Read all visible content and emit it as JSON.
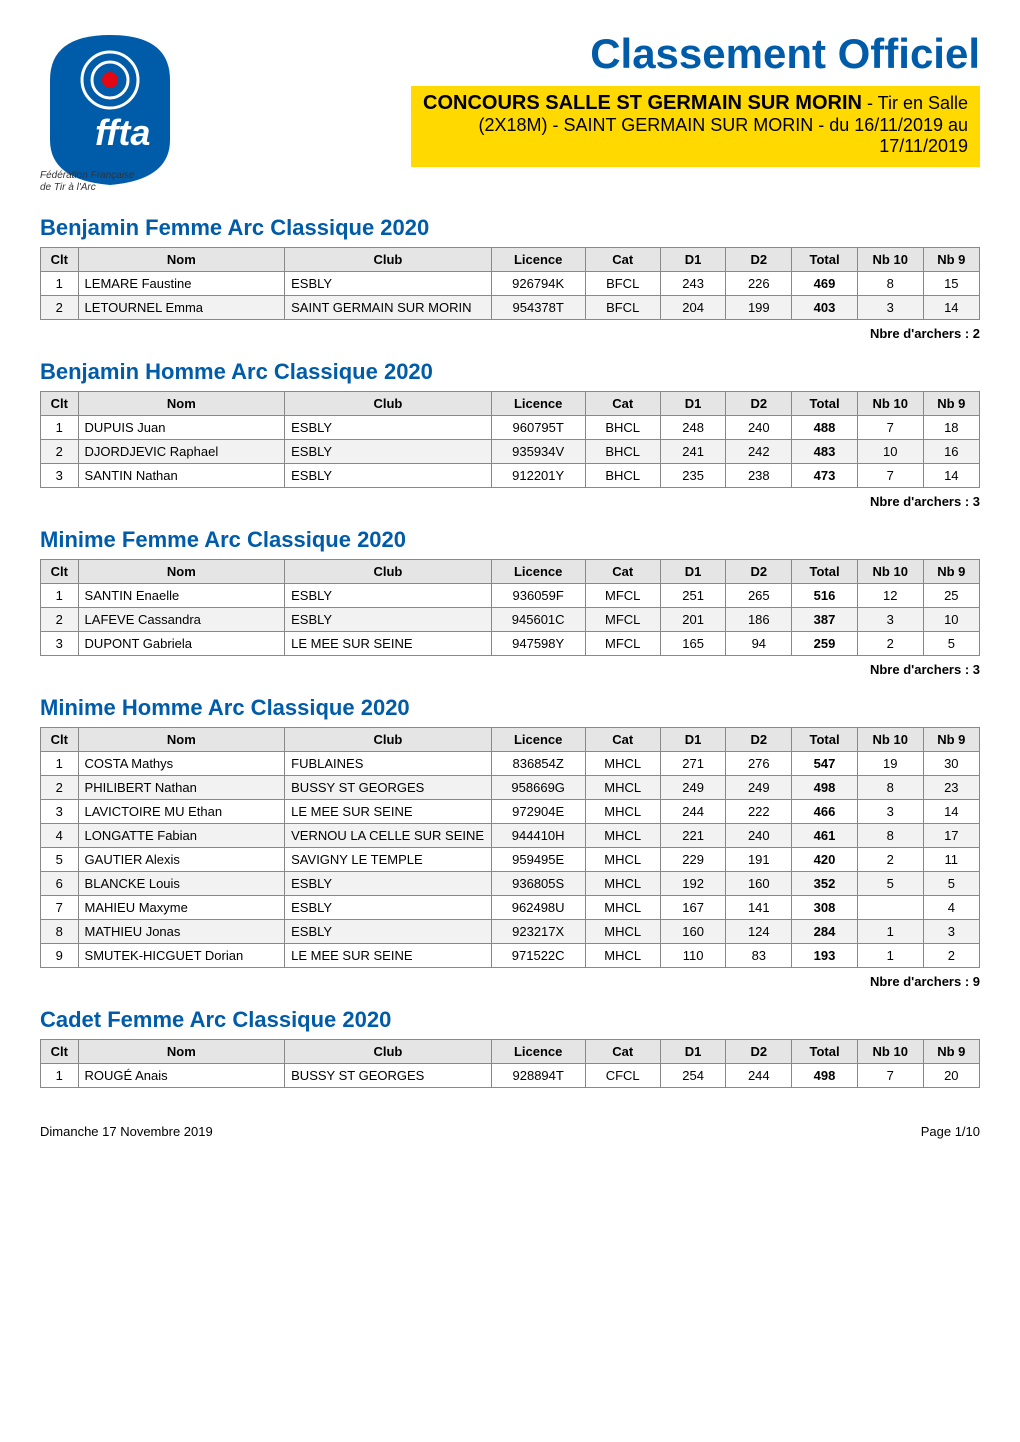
{
  "header": {
    "main_title": "Classement Officiel",
    "sub_title_bold": "CONCOURS SALLE ST GERMAIN SUR MORIN",
    "sub_title_rest": " - Tir en Salle",
    "sub_line2": "(2X18M) - SAINT GERMAIN SUR MORIN - du 16/11/2019 au",
    "sub_line3": "17/11/2019",
    "logo_text1": "Fédération Française",
    "logo_text2": "de Tir à l'Arc"
  },
  "columns": [
    "Clt",
    "Nom",
    "Club",
    "Licence",
    "Cat",
    "D1",
    "D2",
    "Total",
    "Nb 10",
    "Nb 9"
  ],
  "sections": [
    {
      "title": "Benjamin Femme Arc Classique 2020",
      "rows": [
        [
          "1",
          "LEMARE Faustine",
          "ESBLY",
          "926794K",
          "BFCL",
          "243",
          "226",
          "469",
          "8",
          "15"
        ],
        [
          "2",
          "LETOURNEL Emma",
          "SAINT GERMAIN SUR MORIN",
          "954378T",
          "BFCL",
          "204",
          "199",
          "403",
          "3",
          "14"
        ]
      ],
      "nbre": "Nbre d'archers : 2"
    },
    {
      "title": "Benjamin Homme Arc Classique 2020",
      "rows": [
        [
          "1",
          "DUPUIS Juan",
          "ESBLY",
          "960795T",
          "BHCL",
          "248",
          "240",
          "488",
          "7",
          "18"
        ],
        [
          "2",
          "DJORDJEVIC Raphael",
          "ESBLY",
          "935934V",
          "BHCL",
          "241",
          "242",
          "483",
          "10",
          "16"
        ],
        [
          "3",
          "SANTIN Nathan",
          "ESBLY",
          "912201Y",
          "BHCL",
          "235",
          "238",
          "473",
          "7",
          "14"
        ]
      ],
      "nbre": "Nbre d'archers : 3"
    },
    {
      "title": "Minime Femme Arc Classique 2020",
      "rows": [
        [
          "1",
          "SANTIN Enaelle",
          "ESBLY",
          "936059F",
          "MFCL",
          "251",
          "265",
          "516",
          "12",
          "25"
        ],
        [
          "2",
          "LAFEVE Cassandra",
          "ESBLY",
          "945601C",
          "MFCL",
          "201",
          "186",
          "387",
          "3",
          "10"
        ],
        [
          "3",
          "DUPONT Gabriela",
          "LE MEE SUR SEINE",
          "947598Y",
          "MFCL",
          "165",
          "94",
          "259",
          "2",
          "5"
        ]
      ],
      "nbre": "Nbre d'archers : 3"
    },
    {
      "title": "Minime Homme Arc Classique 2020",
      "rows": [
        [
          "1",
          "COSTA Mathys",
          "FUBLAINES",
          "836854Z",
          "MHCL",
          "271",
          "276",
          "547",
          "19",
          "30"
        ],
        [
          "2",
          "PHILIBERT Nathan",
          "BUSSY ST GEORGES",
          "958669G",
          "MHCL",
          "249",
          "249",
          "498",
          "8",
          "23"
        ],
        [
          "3",
          "LAVICTOIRE MU Ethan",
          "LE MEE SUR SEINE",
          "972904E",
          "MHCL",
          "244",
          "222",
          "466",
          "3",
          "14"
        ],
        [
          "4",
          "LONGATTE Fabian",
          "VERNOU LA CELLE SUR SEINE",
          "944410H",
          "MHCL",
          "221",
          "240",
          "461",
          "8",
          "17"
        ],
        [
          "5",
          "GAUTIER Alexis",
          "SAVIGNY LE TEMPLE",
          "959495E",
          "MHCL",
          "229",
          "191",
          "420",
          "2",
          "11"
        ],
        [
          "6",
          "BLANCKE Louis",
          "ESBLY",
          "936805S",
          "MHCL",
          "192",
          "160",
          "352",
          "5",
          "5"
        ],
        [
          "7",
          "MAHIEU Maxyme",
          "ESBLY",
          "962498U",
          "MHCL",
          "167",
          "141",
          "308",
          "",
          "4"
        ],
        [
          "8",
          "MATHIEU Jonas",
          "ESBLY",
          "923217X",
          "MHCL",
          "160",
          "124",
          "284",
          "1",
          "3"
        ],
        [
          "9",
          "SMUTEK-HICGUET Dorian",
          "LE MEE SUR SEINE",
          "971522C",
          "MHCL",
          "110",
          "83",
          "193",
          "1",
          "2"
        ]
      ],
      "nbre": "Nbre d'archers : 9"
    },
    {
      "title": "Cadet Femme Arc Classique 2020",
      "rows": [
        [
          "1",
          "ROUGÉ Anais",
          "BUSSY ST GEORGES",
          "928894T",
          "CFCL",
          "254",
          "244",
          "498",
          "7",
          "20"
        ]
      ],
      "nbre": ""
    }
  ],
  "footer": {
    "left": "Dimanche 17 Novembre 2019",
    "right": "Page 1/10"
  },
  "style": {
    "title_color": "#005ca9",
    "highlight_bg": "#ffd900",
    "header_bg": "#e5e5e5",
    "border_color": "#888888",
    "even_row_bg": "#f2f2f2",
    "col_widths_pct": [
      4,
      22,
      22,
      10,
      8,
      7,
      7,
      7,
      7,
      6
    ]
  }
}
